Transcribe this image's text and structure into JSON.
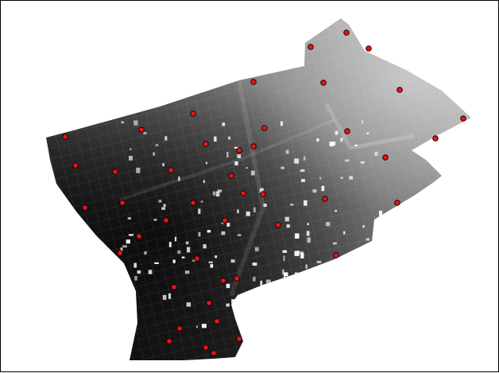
{
  "map": {
    "type": "raster-map-with-point-markers",
    "raster_style": "grayscale",
    "background_color": "#ffffff",
    "border_color": "#000000",
    "marker_color": "#e8141a",
    "marker_outline_color": "#1a0000",
    "marker_count": 56,
    "legend": "none",
    "labels": "none"
  }
}
